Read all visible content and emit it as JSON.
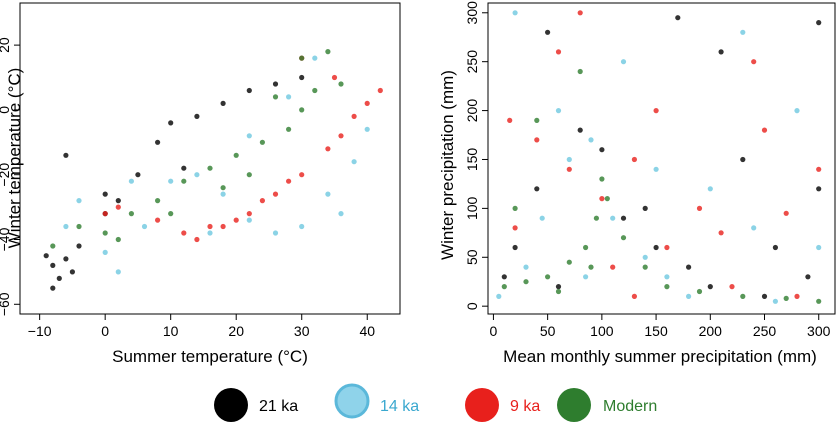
{
  "chart_data": [
    {
      "type": "scatter",
      "title": "",
      "xlabel": "Summer temperature (°C)",
      "ylabel": "Winter temperature   (°C)",
      "xlim": [
        -13,
        45
      ],
      "ylim": [
        -63,
        33
      ],
      "xticks": [
        -10,
        0,
        10,
        20,
        30,
        40
      ],
      "yticks": [
        -60,
        -40,
        -20,
        0,
        20
      ],
      "grid": false,
      "series": [
        {
          "name": "21 ka",
          "color": "#000000",
          "values": [
            [
              -8,
              -48
            ],
            [
              -7,
              -52
            ],
            [
              -6,
              -46
            ],
            [
              -9,
              -45
            ],
            [
              -5,
              -50
            ],
            [
              -8,
              -55
            ],
            [
              -4,
              -42
            ],
            [
              0,
              -32
            ],
            [
              2,
              -28
            ],
            [
              5,
              -20
            ],
            [
              8,
              -10
            ],
            [
              10,
              -4
            ],
            [
              14,
              -2
            ],
            [
              18,
              2
            ],
            [
              22,
              6
            ],
            [
              26,
              8
            ],
            [
              30,
              10
            ],
            [
              -6,
              -14
            ],
            [
              0,
              -26
            ],
            [
              12,
              -18
            ]
          ]
        },
        {
          "name": "14 ka",
          "color": "#6ec8e0",
          "values": [
            [
              -6,
              -36
            ],
            [
              0,
              -44
            ],
            [
              2,
              -50
            ],
            [
              6,
              -36
            ],
            [
              10,
              -22
            ],
            [
              14,
              -20
            ],
            [
              18,
              -26
            ],
            [
              22,
              -34
            ],
            [
              26,
              -38
            ],
            [
              30,
              -36
            ],
            [
              34,
              -26
            ],
            [
              38,
              -16
            ],
            [
              40,
              -6
            ],
            [
              28,
              4
            ],
            [
              32,
              16
            ],
            [
              22,
              -8
            ],
            [
              -4,
              -28
            ],
            [
              4,
              -22
            ],
            [
              16,
              -38
            ],
            [
              36,
              -32
            ]
          ]
        },
        {
          "name": "9 ka",
          "color": "#e8201c",
          "values": [
            [
              0,
              -32
            ],
            [
              8,
              -34
            ],
            [
              14,
              -40
            ],
            [
              18,
              -36
            ],
            [
              22,
              -32
            ],
            [
              26,
              -26
            ],
            [
              30,
              -20
            ],
            [
              34,
              -12
            ],
            [
              36,
              -8
            ],
            [
              38,
              -2
            ],
            [
              40,
              2
            ],
            [
              42,
              6
            ],
            [
              28,
              -22
            ],
            [
              20,
              -34
            ],
            [
              12,
              -38
            ],
            [
              2,
              -30
            ],
            [
              30,
              16
            ],
            [
              35,
              10
            ],
            [
              24,
              -28
            ],
            [
              16,
              -36
            ]
          ]
        },
        {
          "name": "Modern",
          "color": "#2e7d2e",
          "values": [
            [
              -8,
              -42
            ],
            [
              -4,
              -36
            ],
            [
              0,
              -38
            ],
            [
              4,
              -32
            ],
            [
              8,
              -28
            ],
            [
              12,
              -22
            ],
            [
              16,
              -18
            ],
            [
              20,
              -14
            ],
            [
              24,
              -10
            ],
            [
              28,
              -6
            ],
            [
              30,
              0
            ],
            [
              32,
              6
            ],
            [
              30,
              16
            ],
            [
              34,
              18
            ],
            [
              26,
              4
            ],
            [
              18,
              -24
            ],
            [
              10,
              -32
            ],
            [
              2,
              -40
            ],
            [
              22,
              -20
            ],
            [
              36,
              8
            ]
          ]
        }
      ]
    },
    {
      "type": "scatter",
      "title": "",
      "xlabel": "Mean monthly summer precipitation (mm)",
      "ylabel": "Winter precipitation    (mm)",
      "xlim": [
        -5,
        315
      ],
      "ylim": [
        -8,
        310
      ],
      "xticks": [
        0,
        50,
        100,
        150,
        200,
        250,
        300
      ],
      "yticks": [
        0,
        50,
        100,
        150,
        200,
        250,
        300
      ],
      "grid": false,
      "series": [
        {
          "name": "21 ka",
          "color": "#000000",
          "values": [
            [
              10,
              30
            ],
            [
              40,
              120
            ],
            [
              80,
              180
            ],
            [
              120,
              90
            ],
            [
              150,
              60
            ],
            [
              180,
              40
            ],
            [
              200,
              20
            ],
            [
              230,
              150
            ],
            [
              260,
              60
            ],
            [
              290,
              30
            ],
            [
              300,
              120
            ],
            [
              50,
              280
            ],
            [
              100,
              160
            ],
            [
              140,
              100
            ],
            [
              210,
              260
            ],
            [
              170,
              295
            ],
            [
              250,
              10
            ],
            [
              60,
              20
            ],
            [
              20,
              60
            ],
            [
              300,
              290
            ]
          ]
        },
        {
          "name": "14 ka",
          "color": "#6ec8e0",
          "values": [
            [
              5,
              10
            ],
            [
              30,
              40
            ],
            [
              70,
              150
            ],
            [
              90,
              170
            ],
            [
              110,
              90
            ],
            [
              140,
              50
            ],
            [
              160,
              30
            ],
            [
              200,
              120
            ],
            [
              240,
              80
            ],
            [
              280,
              200
            ],
            [
              60,
              200
            ],
            [
              20,
              300
            ],
            [
              120,
              250
            ],
            [
              180,
              10
            ],
            [
              260,
              5
            ],
            [
              300,
              60
            ],
            [
              45,
              90
            ],
            [
              85,
              30
            ],
            [
              150,
              140
            ],
            [
              230,
              280
            ]
          ]
        },
        {
          "name": "9 ka",
          "color": "#e8201c",
          "values": [
            [
              20,
              80
            ],
            [
              60,
              260
            ],
            [
              80,
              300
            ],
            [
              100,
              110
            ],
            [
              130,
              150
            ],
            [
              160,
              60
            ],
            [
              190,
              100
            ],
            [
              220,
              20
            ],
            [
              250,
              180
            ],
            [
              280,
              10
            ],
            [
              40,
              170
            ],
            [
              110,
              40
            ],
            [
              150,
              200
            ],
            [
              210,
              75
            ],
            [
              300,
              140
            ],
            [
              70,
              140
            ],
            [
              240,
              250
            ],
            [
              130,
              10
            ],
            [
              270,
              95
            ],
            [
              15,
              190
            ]
          ]
        },
        {
          "name": "Modern",
          "color": "#2e7d2e",
          "values": [
            [
              10,
              20
            ],
            [
              30,
              25
            ],
            [
              50,
              30
            ],
            [
              70,
              45
            ],
            [
              85,
              60
            ],
            [
              95,
              90
            ],
            [
              100,
              130
            ],
            [
              105,
              110
            ],
            [
              90,
              40
            ],
            [
              60,
              15
            ],
            [
              120,
              70
            ],
            [
              140,
              40
            ],
            [
              160,
              20
            ],
            [
              190,
              15
            ],
            [
              230,
              10
            ],
            [
              270,
              8
            ],
            [
              300,
              5
            ],
            [
              20,
              100
            ],
            [
              40,
              190
            ],
            [
              80,
              240
            ]
          ]
        }
      ]
    }
  ],
  "legend": {
    "placement": "bottom",
    "items": [
      {
        "label": "21 ka",
        "color": "#000000",
        "edge": "#000000"
      },
      {
        "label": "14 ka",
        "color": "#8fd3ea",
        "edge": "#5bb8da"
      },
      {
        "label": "9 ka",
        "color": "#e8201c",
        "edge": "#e8201c"
      },
      {
        "label": "Modern",
        "color": "#2e7d2e",
        "edge": "#2e7d2e"
      }
    ]
  }
}
